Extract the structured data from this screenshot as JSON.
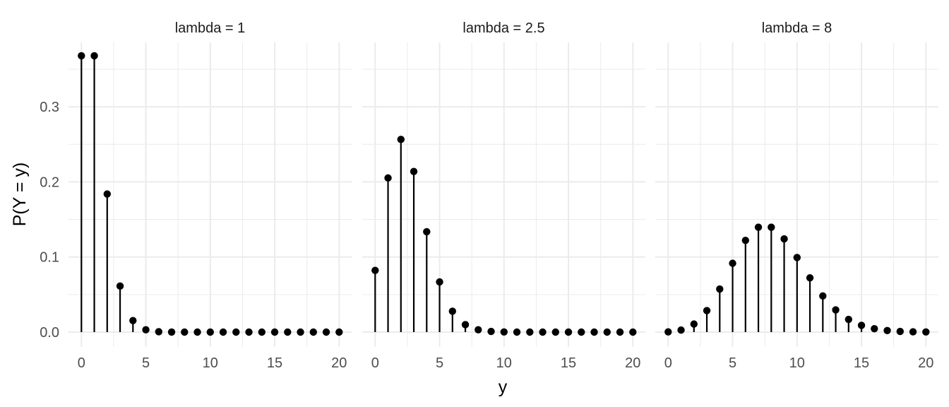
{
  "chart_data": {
    "type": "scatter",
    "style": "lollipop",
    "facets": [
      {
        "strip_label": "lambda = 1",
        "lambda": 1
      },
      {
        "strip_label": "lambda = 2.5",
        "lambda": 2.5
      },
      {
        "strip_label": "lambda = 8",
        "lambda": 8
      }
    ],
    "x": [
      0,
      1,
      2,
      3,
      4,
      5,
      6,
      7,
      8,
      9,
      10,
      11,
      12,
      13,
      14,
      15,
      16,
      17,
      18,
      19,
      20
    ],
    "series": [
      {
        "facet": "lambda = 1",
        "values": [
          0.3679,
          0.3679,
          0.1839,
          0.0613,
          0.0153,
          0.0031,
          0.0005,
          0.0001,
          0,
          0,
          0,
          0,
          0,
          0,
          0,
          0,
          0,
          0,
          0,
          0,
          0
        ]
      },
      {
        "facet": "lambda = 2.5",
        "values": [
          0.0821,
          0.2052,
          0.2565,
          0.2138,
          0.1336,
          0.0668,
          0.0278,
          0.0099,
          0.0031,
          0.0009,
          0.0002,
          0,
          0,
          0,
          0,
          0,
          0,
          0,
          0,
          0,
          0
        ]
      },
      {
        "facet": "lambda = 8",
        "values": [
          0.0003,
          0.0027,
          0.0107,
          0.0286,
          0.0573,
          0.0916,
          0.1221,
          0.1396,
          0.1396,
          0.1241,
          0.0993,
          0.0722,
          0.0481,
          0.0296,
          0.0169,
          0.009,
          0.0045,
          0.0021,
          0.0009,
          0.0004,
          0.0002
        ]
      }
    ],
    "xlabel": "y",
    "ylabel": "P(Y = y)",
    "xlim": [
      -0.5,
      20.5
    ],
    "ylim": [
      0,
      0.368
    ],
    "x_ticks": [
      0,
      5,
      10,
      15,
      20
    ],
    "x_tick_labels": [
      "0",
      "5",
      "10",
      "15",
      "20"
    ],
    "y_ticks": [
      0,
      0.1,
      0.2,
      0.3
    ],
    "y_tick_labels": [
      "0.0",
      "0.1",
      "0.2",
      "0.3"
    ],
    "grid": true,
    "legend": "none",
    "colors": {
      "mark": "#000000",
      "grid": "#ebebeb",
      "background": "#ffffff"
    }
  }
}
